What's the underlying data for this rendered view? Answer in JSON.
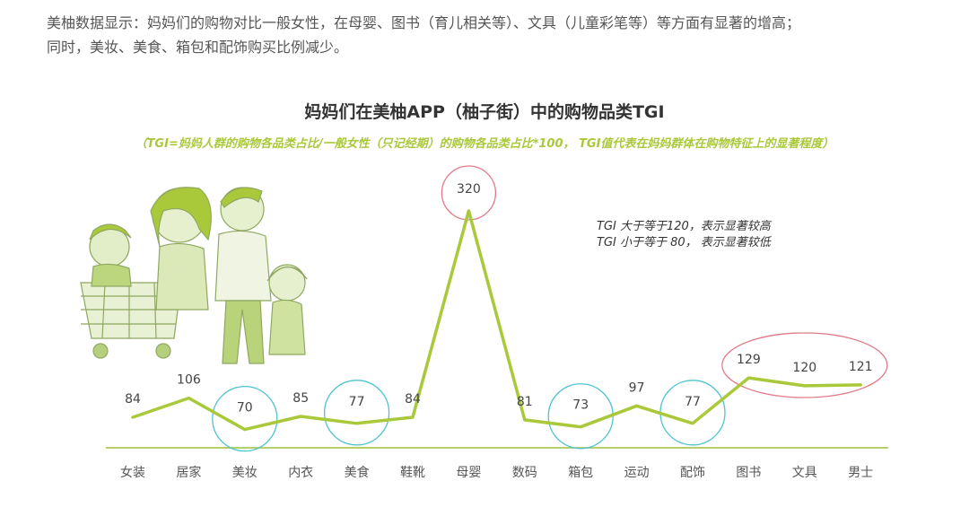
{
  "intro": {
    "line1": "美柚数据显示：妈妈们的购物对比一般女性，在母婴、图书（育儿相关等）、文具（儿童彩笔等）等方面有显著的增高；",
    "line2": "同时，美妆、美食、箱包和配饰购买比例减少。"
  },
  "notes": {
    "line1": "TGI 大于等于120，表示显著较高",
    "line2": "TGI 小于等于 80， 表示显著较低"
  },
  "colors": {
    "line": "#a9c93a",
    "axis": "#9fbf3a",
    "circle_low": "#4fc3d0",
    "circle_high": "#e07a8a",
    "label": "#444444"
  },
  "chart_data": {
    "type": "line",
    "title": "妈妈们在美柚APP（柚子街）中的购物品类TGI",
    "subtitle": "（TGI=妈妈人群的购物各品类占比/一般女性（只记经期）的购物各品类占比*100， TGI值代表在妈妈群体在购物特征上的显著程度）",
    "categories": [
      "女装",
      "居家",
      "美妆",
      "内衣",
      "美食",
      "鞋靴",
      "母婴",
      "数码",
      "箱包",
      "运动",
      "配饰",
      "图书",
      "文具",
      "男士"
    ],
    "values": [
      84,
      106,
      70,
      85,
      77,
      84,
      320,
      81,
      73,
      97,
      77,
      129,
      120,
      121
    ],
    "highlight_low": [
      "美妆",
      "美食",
      "箱包",
      "配饰"
    ],
    "highlight_high": [
      "母婴",
      "图书",
      "文具",
      "男士"
    ],
    "grid": false,
    "legend": "none"
  }
}
